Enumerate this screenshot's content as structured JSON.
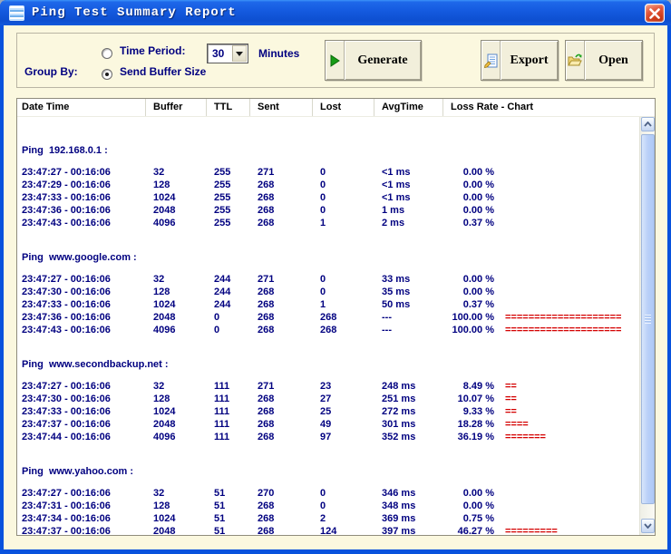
{
  "window": {
    "title": "Ping Test Summary Report"
  },
  "colors": {
    "titlebar_blue": "#1259DB",
    "window_border": "#0852DD",
    "client_cream": "#FBF8DF",
    "text_navy": "#000080",
    "chart_red": "#D40000",
    "close_red": "#CC3917"
  },
  "controls": {
    "group_by_label": "Group By:",
    "time_period_label": "Time Period:",
    "time_period_value": "30",
    "time_period_unit": "Minutes",
    "send_buffer_label": "Send Buffer Size",
    "generate_label": "Generate",
    "export_label": "Export",
    "open_label": "Open"
  },
  "table": {
    "columns": [
      "Date Time",
      "Buffer",
      "TTL",
      "Sent",
      "Lost",
      "AvgTime",
      "Loss Rate - Chart"
    ],
    "groups": [
      {
        "title": "Ping  192.168.0.1 :",
        "rows": [
          {
            "date": "23:47:27 - 00:16:06",
            "buffer": "32",
            "ttl": "255",
            "sent": "271",
            "lost": "0",
            "avg": "<1 ms",
            "rate": "0.00 %",
            "bar": ""
          },
          {
            "date": "23:47:29 - 00:16:06",
            "buffer": "128",
            "ttl": "255",
            "sent": "268",
            "lost": "0",
            "avg": "<1 ms",
            "rate": "0.00 %",
            "bar": ""
          },
          {
            "date": "23:47:33 - 00:16:06",
            "buffer": "1024",
            "ttl": "255",
            "sent": "268",
            "lost": "0",
            "avg": "<1 ms",
            "rate": "0.00 %",
            "bar": ""
          },
          {
            "date": "23:47:36 - 00:16:06",
            "buffer": "2048",
            "ttl": "255",
            "sent": "268",
            "lost": "0",
            "avg": "1 ms",
            "rate": "0.00 %",
            "bar": ""
          },
          {
            "date": "23:47:43 - 00:16:06",
            "buffer": "4096",
            "ttl": "255",
            "sent": "268",
            "lost": "1",
            "avg": "2 ms",
            "rate": "0.37 %",
            "bar": ""
          }
        ]
      },
      {
        "title": "Ping  www.google.com :",
        "rows": [
          {
            "date": "23:47:27 - 00:16:06",
            "buffer": "32",
            "ttl": "244",
            "sent": "271",
            "lost": "0",
            "avg": "33 ms",
            "rate": "0.00 %",
            "bar": ""
          },
          {
            "date": "23:47:30 - 00:16:06",
            "buffer": "128",
            "ttl": "244",
            "sent": "268",
            "lost": "0",
            "avg": "35 ms",
            "rate": "0.00 %",
            "bar": ""
          },
          {
            "date": "23:47:33 - 00:16:06",
            "buffer": "1024",
            "ttl": "244",
            "sent": "268",
            "lost": "1",
            "avg": "50 ms",
            "rate": "0.37 %",
            "bar": ""
          },
          {
            "date": "23:47:36 - 00:16:06",
            "buffer": "2048",
            "ttl": "0",
            "sent": "268",
            "lost": "268",
            "avg": "---",
            "rate": "100.00 %",
            "bar": "===================="
          },
          {
            "date": "23:47:43 - 00:16:06",
            "buffer": "4096",
            "ttl": "0",
            "sent": "268",
            "lost": "268",
            "avg": "---",
            "rate": "100.00 %",
            "bar": "===================="
          }
        ]
      },
      {
        "title": "Ping  www.secondbackup.net :",
        "rows": [
          {
            "date": "23:47:27 - 00:16:06",
            "buffer": "32",
            "ttl": "111",
            "sent": "271",
            "lost": "23",
            "avg": "248 ms",
            "rate": "8.49 %",
            "bar": "=="
          },
          {
            "date": "23:47:30 - 00:16:06",
            "buffer": "128",
            "ttl": "111",
            "sent": "268",
            "lost": "27",
            "avg": "251 ms",
            "rate": "10.07 %",
            "bar": "=="
          },
          {
            "date": "23:47:33 - 00:16:06",
            "buffer": "1024",
            "ttl": "111",
            "sent": "268",
            "lost": "25",
            "avg": "272 ms",
            "rate": "9.33 %",
            "bar": "=="
          },
          {
            "date": "23:47:37 - 00:16:06",
            "buffer": "2048",
            "ttl": "111",
            "sent": "268",
            "lost": "49",
            "avg": "301 ms",
            "rate": "18.28 %",
            "bar": "===="
          },
          {
            "date": "23:47:44 - 00:16:06",
            "buffer": "4096",
            "ttl": "111",
            "sent": "268",
            "lost": "97",
            "avg": "352 ms",
            "rate": "36.19 %",
            "bar": "======="
          }
        ]
      },
      {
        "title": "Ping  www.yahoo.com :",
        "rows": [
          {
            "date": "23:47:27 - 00:16:06",
            "buffer": "32",
            "ttl": "51",
            "sent": "270",
            "lost": "0",
            "avg": "346 ms",
            "rate": "0.00 %",
            "bar": ""
          },
          {
            "date": "23:47:31 - 00:16:06",
            "buffer": "128",
            "ttl": "51",
            "sent": "268",
            "lost": "0",
            "avg": "348 ms",
            "rate": "0.00 %",
            "bar": ""
          },
          {
            "date": "23:47:34 - 00:16:06",
            "buffer": "1024",
            "ttl": "51",
            "sent": "268",
            "lost": "2",
            "avg": "369 ms",
            "rate": "0.75 %",
            "bar": ""
          },
          {
            "date": "23:47:37 - 00:16:06",
            "buffer": "2048",
            "ttl": "51",
            "sent": "268",
            "lost": "124",
            "avg": "397 ms",
            "rate": "46.27 %",
            "bar": "========="
          }
        ]
      }
    ]
  }
}
